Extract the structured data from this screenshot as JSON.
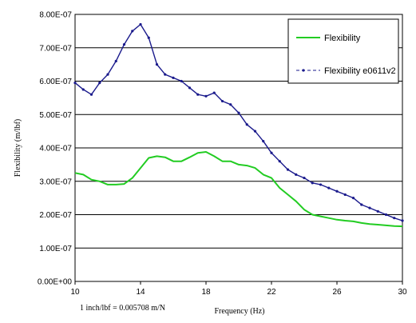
{
  "chart_data": {
    "type": "line",
    "xlabel": "Frequency (Hz)",
    "ylabel": "Flexibility (m/lbf)",
    "xlim": [
      10,
      30
    ],
    "ylim": [
      0,
      8e-07
    ],
    "x_ticks": [
      10,
      14,
      18,
      22,
      26,
      30
    ],
    "y_ticks": [
      0,
      1e-07,
      2e-07,
      3e-07,
      4e-07,
      5e-07,
      6e-07,
      7e-07,
      8e-07
    ],
    "x_tick_labels": [
      "10",
      "14",
      "18",
      "22",
      "26",
      "30"
    ],
    "y_tick_labels": [
      "0.00E+00",
      "1.00E-07",
      "2.00E-07",
      "3.00E-07",
      "4.00E-07",
      "5.00E-07",
      "6.00E-07",
      "7.00E-07",
      "8.00E-07"
    ],
    "grid": "horizontal",
    "legend_position": "top-right",
    "series": [
      {
        "name": "Flexibility",
        "color": "#22cc22",
        "marker": "none",
        "x": [
          10,
          10.5,
          11,
          11.5,
          12,
          12.5,
          13,
          13.5,
          14,
          14.5,
          15,
          15.5,
          16,
          16.5,
          17,
          17.5,
          18,
          18.5,
          19,
          19.5,
          20,
          20.5,
          21,
          21.5,
          22,
          22.5,
          23,
          23.5,
          24,
          24.5,
          25,
          25.5,
          26,
          26.5,
          27,
          27.5,
          28,
          28.5,
          29,
          29.5,
          30
        ],
        "y": [
          3.25e-07,
          3.2e-07,
          3.05e-07,
          3e-07,
          2.9e-07,
          2.9e-07,
          2.92e-07,
          3.1e-07,
          3.4e-07,
          3.7e-07,
          3.75e-07,
          3.72e-07,
          3.6e-07,
          3.6e-07,
          3.72e-07,
          3.85e-07,
          3.88e-07,
          3.75e-07,
          3.6e-07,
          3.6e-07,
          3.5e-07,
          3.47e-07,
          3.4e-07,
          3.2e-07,
          3.1e-07,
          2.8e-07,
          2.6e-07,
          2.4e-07,
          2.15e-07,
          2e-07,
          1.95e-07,
          1.9e-07,
          1.85e-07,
          1.82e-07,
          1.8e-07,
          1.75e-07,
          1.72e-07,
          1.7e-07,
          1.68e-07,
          1.66e-07,
          1.65e-07
        ]
      },
      {
        "name": "Flexibility e0611v2",
        "color": "#1a1a8c",
        "marker": "dot",
        "x": [
          10,
          10.5,
          11,
          11.5,
          12,
          12.5,
          13,
          13.5,
          14,
          14.5,
          15,
          15.5,
          16,
          16.5,
          17,
          17.5,
          18,
          18.5,
          19,
          19.5,
          20,
          20.5,
          21,
          21.5,
          22,
          22.5,
          23,
          23.5,
          24,
          24.5,
          25,
          25.5,
          26,
          26.5,
          27,
          27.5,
          28,
          28.5,
          29,
          29.5,
          30
        ],
        "y": [
          5.95e-07,
          5.75e-07,
          5.6e-07,
          5.95e-07,
          6.2e-07,
          6.6e-07,
          7.1e-07,
          7.5e-07,
          7.7e-07,
          7.3e-07,
          6.5e-07,
          6.2e-07,
          6.1e-07,
          6e-07,
          5.8e-07,
          5.6e-07,
          5.55e-07,
          5.65e-07,
          5.4e-07,
          5.3e-07,
          5.05e-07,
          4.7e-07,
          4.5e-07,
          4.2e-07,
          3.85e-07,
          3.6e-07,
          3.35e-07,
          3.2e-07,
          3.1e-07,
          2.95e-07,
          2.9e-07,
          2.8e-07,
          2.7e-07,
          2.6e-07,
          2.5e-07,
          2.3e-07,
          2.2e-07,
          2.1e-07,
          2e-07,
          1.9e-07,
          1.82e-07
        ]
      }
    ]
  },
  "note": "1 inch/lbf = 0.005708 m/N"
}
